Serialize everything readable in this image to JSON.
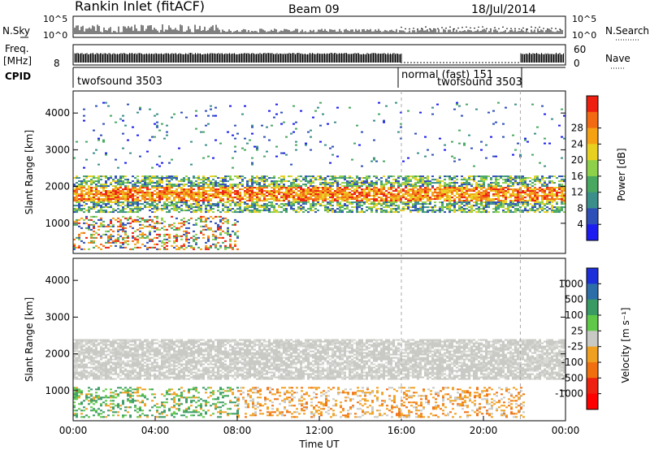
{
  "header": {
    "station": "Rankin Inlet (fitACF)",
    "beam": "Beam 09",
    "date": "18/Jul/2014"
  },
  "panels": {
    "nsky_label": "N.Sky",
    "nsearch_label": "N.Search",
    "nsky_ticks": [
      "10^5",
      "10^0"
    ],
    "nsearch_ticks": [
      "10^5",
      "10^0"
    ],
    "freq_label_1": "Freq.",
    "freq_label_2": "[MHz]",
    "freq_ticks": [
      "8"
    ],
    "nave_label": "Nave",
    "nave_ticks": [
      "60",
      "0"
    ],
    "cpid_label": "CPID",
    "cpid_segments": [
      {
        "name": "twofsound 3503"
      },
      {
        "name": "normal (fast) 151"
      },
      {
        "name": "twofsound 3503"
      }
    ]
  },
  "chart_data": [
    {
      "type": "heatmap",
      "name": "Power",
      "xlabel": "",
      "ylabel": "Slant Range [km]",
      "x_ticks": [
        "00:00",
        "04:00",
        "08:00",
        "12:00",
        "16:00",
        "20:00",
        "00:00"
      ],
      "y_ticks": [
        "1000",
        "2000",
        "3000",
        "4000"
      ],
      "xlim_hours": [
        0,
        24
      ],
      "ylim": [
        180,
        4600
      ],
      "colorbar_label": "Power [dB]",
      "colorbar_ticks": [
        "4",
        "8",
        "12",
        "16",
        "20",
        "24",
        "28"
      ],
      "colors": [
        "#1c1cf0",
        "#2f4fb8",
        "#3b8f8a",
        "#48a860",
        "#8fd04a",
        "#e8d020",
        "#f4a214",
        "#f26a12",
        "#ee1f10"
      ],
      "bands": [
        {
          "h0": 0,
          "h1": 24,
          "r0": 1300,
          "r1": 2300,
          "level": "strong"
        },
        {
          "h0": 0,
          "h1": 8,
          "r0": 300,
          "r1": 1200,
          "level": "mixed"
        },
        {
          "h0": 0,
          "h1": 24,
          "r0": 2500,
          "r1": 4300,
          "level": "sparse"
        }
      ]
    },
    {
      "type": "heatmap",
      "name": "Velocity",
      "xlabel": "Time UT",
      "ylabel": "Slant Range [km]",
      "x_ticks": [
        "00:00",
        "04:00",
        "08:00",
        "12:00",
        "16:00",
        "20:00",
        "00:00"
      ],
      "y_ticks": [
        "1000",
        "2000",
        "3000",
        "4000"
      ],
      "xlim_hours": [
        0,
        24
      ],
      "ylim": [
        180,
        4600
      ],
      "colorbar_label": "Velocity [m s⁻¹]",
      "colorbar_ticks": [
        "1000",
        "500",
        "100",
        "25",
        "-25",
        "-100",
        "-500",
        "-1000"
      ],
      "colors": [
        "#1c2fd8",
        "#2d6ea8",
        "#3a9a64",
        "#5fc848",
        "#c8c8c4",
        "#f0a020",
        "#f07010",
        "#ee2010",
        "#ff0000"
      ],
      "bands": [
        {
          "h0": 0,
          "h1": 24,
          "r0": 1300,
          "r1": 2400,
          "level": "ground_scatter"
        },
        {
          "h0": 0,
          "h1": 8,
          "r0": 300,
          "r1": 1100,
          "level": "green"
        },
        {
          "h0": 8,
          "h1": 22,
          "r0": 300,
          "r1": 1100,
          "level": "orange"
        }
      ]
    }
  ]
}
